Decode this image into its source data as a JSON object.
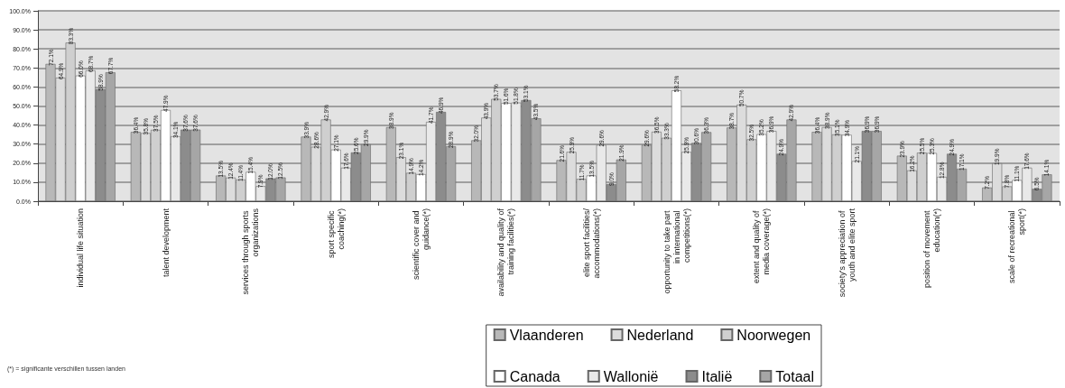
{
  "chart_data": {
    "type": "bar",
    "categories": [
      "individual life situation",
      "talent development",
      "services through sports organizations",
      "sport specific coaching(*)",
      "scientific cover and guidance(*)",
      "availability and quality of training facilities(*)",
      "elite sport facilities/accommodations(*)",
      "opportunity to take part in international competitions(*)",
      "extent and quality of media coverage(*)",
      "society's appreciation of youth and elite sport",
      "position of movement education(*)",
      "scale of recreational sport(*)"
    ],
    "series": [
      {
        "name": "Vlaanderen",
        "color": "#b8b8b8",
        "values": [
          72.1,
          36.4,
          13.5,
          33.9,
          38.9,
          32.0,
          21.6,
          29.6,
          38.7,
          36.4,
          23.9,
          7.2
        ],
        "value_labels": [
          "72.1%",
          "36.4%",
          "13.5%",
          "33.9%",
          "38.9%",
          "32.0%",
          "21.6%",
          "29.6%",
          "38.7%",
          "36.4%",
          "23.9%",
          "7.2%"
        ]
      },
      {
        "name": "Nederland",
        "color": "#dcdcdc",
        "values": [
          64.9,
          35.8,
          12.4,
          28.6,
          23.1,
          43.9,
          25.9,
          36.5,
          50.7,
          38.9,
          16.2,
          19.9
        ],
        "value_labels": [
          "64.9%",
          "35.8%",
          "12.4%",
          "28.6%",
          "23.1%",
          "43.9%",
          "25.9%",
          "36.5%",
          "50.7%",
          "38.9%",
          "16.2%",
          "19.9%"
        ]
      },
      {
        "name": "Noorwegen",
        "color": "#cfcfcf",
        "values": [
          83.3,
          37.5,
          11.4,
          42.9,
          14.9,
          53.7,
          11.7,
          33.3,
          32.5,
          35.1,
          25.5,
          7.8
        ],
        "value_labels": [
          "83.3%",
          "37.5%",
          "11.4%",
          "42.9%",
          "14.9%",
          "53.7%",
          "11.7%",
          "33.3%",
          "32.5%",
          "35.1%",
          "25.5%",
          "7.8%"
        ]
      },
      {
        "name": "Canada",
        "color": "#ffffff",
        "values": [
          66.0,
          47.9,
          15.4,
          27.1,
          14.2,
          51.6,
          13.5,
          58.2,
          35.2,
          34.9,
          25.3,
          11.1
        ],
        "value_labels": [
          "66.0%",
          "47.9%",
          "15.4%",
          "27.1%",
          "14.2%",
          "51.6%",
          "13.5%",
          "58.2%",
          "35.2%",
          "34.9%",
          "25.3%",
          "11.1%"
        ]
      },
      {
        "name": "Wallonië",
        "color": "#e9e9e9",
        "values": [
          68.7,
          34.1,
          7.9,
          17.6,
          41.7,
          51.8,
          29.6,
          25.9,
          36.9,
          21.1,
          12.8,
          17.6
        ],
        "value_labels": [
          "68.7%",
          "34.1%",
          "7.9%",
          "17.6%",
          "41.7%",
          "51.8%",
          "29.6%",
          "25.9%",
          "36.9%",
          "21.1%",
          "12.8%",
          "17.6%"
        ]
      },
      {
        "name": "Italië",
        "color": "#8c8c8c",
        "values": [
          58.9,
          37.6,
          12.0,
          25.6,
          46.9,
          53.1,
          9.0,
          30.6,
          24.9,
          36.9,
          24.9,
          6.5
        ],
        "value_labels": [
          "58.9%",
          "37.6%",
          "12.0%",
          "25.6%",
          "46.9%",
          "53.1%",
          "9.0%",
          "30.6%",
          "24.9%",
          "36.9%",
          "24.9%",
          "6.5%"
        ]
      },
      {
        "name": "Totaal",
        "color": "#a6a6a6",
        "values": [
          67.7,
          37.6,
          12.5,
          29.9,
          28.9,
          43.5,
          21.9,
          36.3,
          42.9,
          36.9,
          17.1,
          14.1
        ],
        "value_labels": [
          "67.7%",
          "37.6%",
          "12.5%",
          "29.9%",
          "28.9%",
          "43.5%",
          "21.9%",
          "36.3%",
          "42.9%",
          "36.9%",
          "17.1%",
          "14.1%"
        ]
      }
    ],
    "ylim": [
      0,
      100
    ],
    "yticks": [
      {
        "value": 0,
        "label": "0.0%"
      },
      {
        "value": 10,
        "label": "10.0%"
      },
      {
        "value": 20,
        "label": "20.0%"
      },
      {
        "value": 30,
        "label": "30.0%"
      },
      {
        "value": 40,
        "label": "40.0%"
      },
      {
        "value": 50,
        "label": "50.0%"
      },
      {
        "value": 60,
        "label": "60.0%"
      },
      {
        "value": 70,
        "label": "70.0%"
      },
      {
        "value": 80,
        "label": "80.0%"
      },
      {
        "value": 90,
        "label": "90.0%"
      },
      {
        "value": 100,
        "label": "100.0%"
      }
    ],
    "grid": "y",
    "legend": "bottom right",
    "annotations": [
      "(*) = significante verschillen tussen landen"
    ]
  }
}
